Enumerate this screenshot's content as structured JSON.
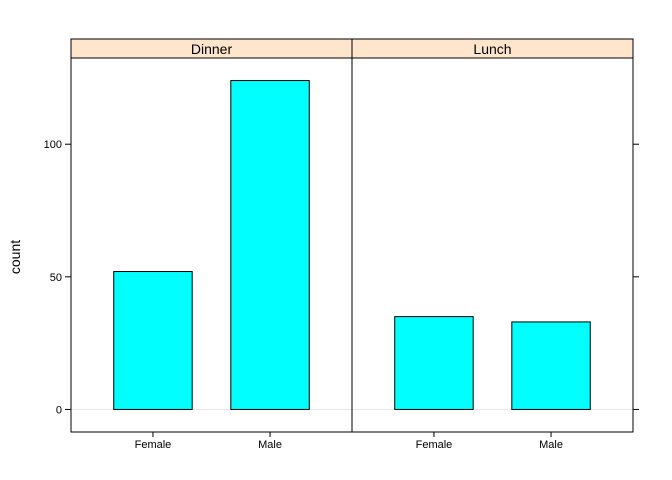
{
  "chart_data": {
    "type": "bar",
    "ylabel": "count",
    "xlabel": "",
    "ylim": [
      -8.5,
      132.5
    ],
    "yticks": [
      0,
      50,
      100
    ],
    "strip_color": "#ffe5cc",
    "bar_color": "#00ffff",
    "panels": [
      {
        "name": "Dinner",
        "categories": [
          "Female",
          "Male"
        ],
        "values": [
          52,
          124
        ]
      },
      {
        "name": "Lunch",
        "categories": [
          "Female",
          "Male"
        ],
        "values": [
          35,
          33
        ]
      }
    ]
  }
}
